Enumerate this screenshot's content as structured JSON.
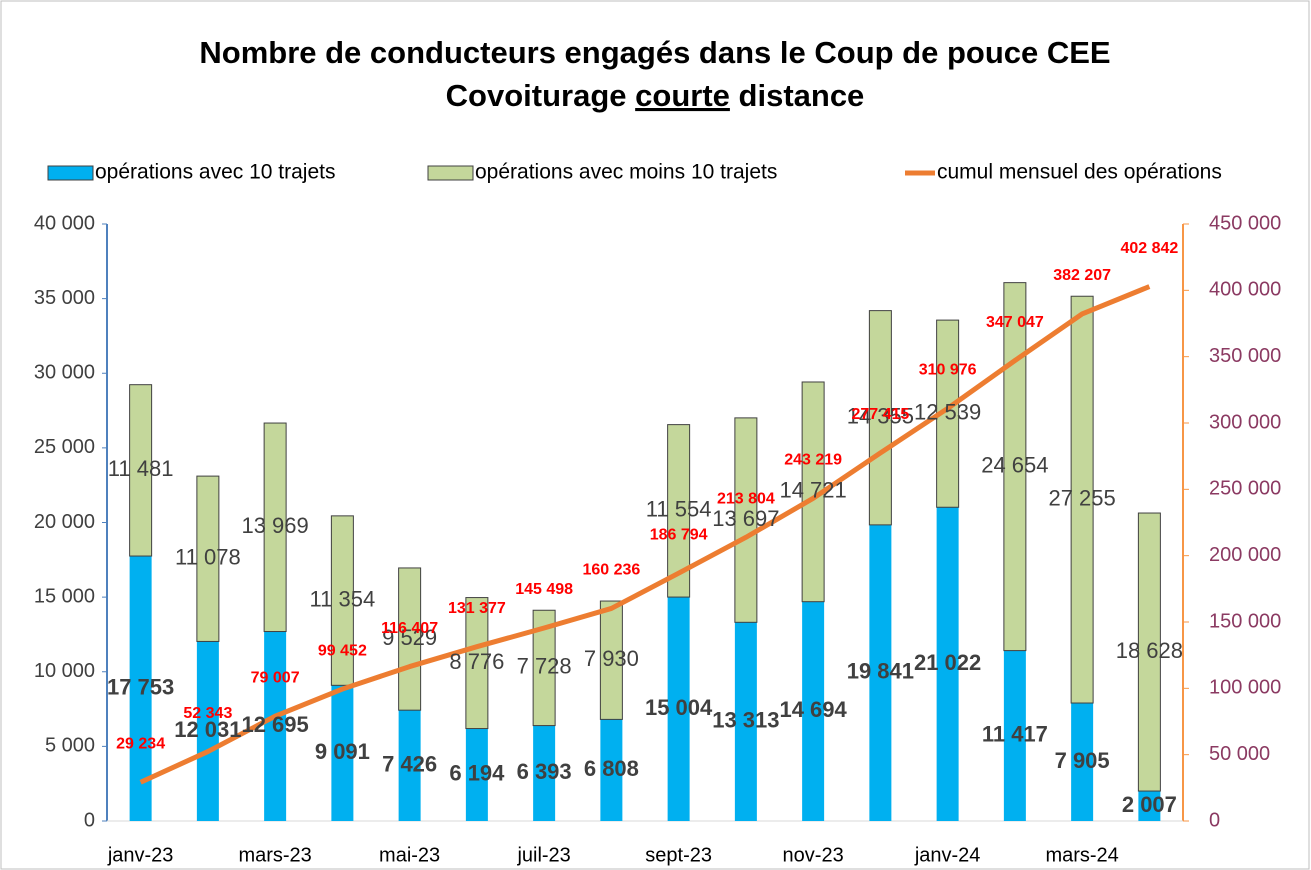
{
  "chart_data": {
    "type": "bar",
    "title": {
      "line1": "Nombre de conducteurs engagés dans le Coup de pouce CEE",
      "line2": [
        "Covoiturage",
        "courte",
        "distance"
      ]
    },
    "categories": [
      "janv-23",
      null,
      "mars-23",
      null,
      "mai-23",
      null,
      "juil-23",
      null,
      "sept-23",
      null,
      "nov-23",
      null,
      "janv-24",
      null,
      "mars-24",
      null
    ],
    "series": [
      {
        "name": "opérations avec 10 trajets",
        "type": "bar",
        "color": "#00b0f0",
        "values": [
          17753,
          12031,
          12695,
          9091,
          7426,
          6194,
          6393,
          6808,
          15004,
          13313,
          14694,
          19841,
          21022,
          11417,
          7905,
          2007
        ],
        "value_labels": [
          "17 753",
          "12 031",
          "12 695",
          "9 091",
          "7 426",
          "6 194",
          "6 393",
          "6 808",
          "15 004",
          "13 313",
          "14 694",
          "19 841",
          "21 022",
          "11 417",
          "7 905",
          "2 007"
        ]
      },
      {
        "name": "opérations avec moins 10 trajets",
        "type": "bar",
        "color": "#c4d79b",
        "values": [
          11481,
          11078,
          13969,
          11354,
          9529,
          8776,
          7728,
          7930,
          11554,
          13697,
          14721,
          14355,
          12539,
          24654,
          27255,
          18628
        ],
        "value_labels": [
          "11 481",
          "11 078",
          "13 969",
          "11 354",
          "9 529",
          "8 776",
          "7 728",
          "7 930",
          "11 554",
          "13 697",
          "14 721",
          "14 355",
          "12 539",
          "24 654",
          "27 255",
          "18 628"
        ]
      },
      {
        "name": "cumul mensuel des opérations",
        "type": "line",
        "axis": "y2",
        "color": "#ed7d31",
        "values": [
          29234,
          52343,
          79007,
          99452,
          116407,
          131377,
          145498,
          160236,
          186794,
          213804,
          243219,
          277415,
          310976,
          347047,
          382207,
          402842
        ],
        "value_labels": [
          "29 234",
          "52 343",
          "79 007",
          "99 452",
          "116 407",
          "131 377",
          "145 498",
          "160 236",
          "186 794",
          "213 804",
          "243 219",
          "277 415",
          "310 976",
          "347 047",
          "382 207",
          "402 842"
        ]
      }
    ],
    "stacked": true,
    "ylim": [
      0,
      40000
    ],
    "yticks": [
      0,
      {
        "value": 5000,
        "label": "5 000"
      },
      {
        "value": 10000,
        "label": "10 000"
      },
      {
        "value": 15000,
        "label": "15 000"
      },
      {
        "value": 20000,
        "label": "20 000"
      },
      {
        "value": 25000,
        "label": "25 000"
      },
      {
        "value": 30000,
        "label": "30 000"
      },
      {
        "value": 35000,
        "label": "35 000"
      },
      {
        "value": 40000,
        "label": "40 000"
      }
    ],
    "y2lim": [
      0,
      450000
    ],
    "y2ticks": [
      0,
      {
        "value": 50000,
        "label": "50 000"
      },
      {
        "value": 100000,
        "label": "100 000"
      },
      {
        "value": 150000,
        "label": "150 000"
      },
      {
        "value": 200000,
        "label": "200 000"
      },
      {
        "value": 250000,
        "label": "250 000"
      },
      {
        "value": 300000,
        "label": "300 000"
      },
      {
        "value": 350000,
        "label": "350 000"
      },
      {
        "value": 400000,
        "label": "400 000"
      },
      {
        "value": 450000,
        "label": "450 000"
      }
    ],
    "legend": "top"
  }
}
